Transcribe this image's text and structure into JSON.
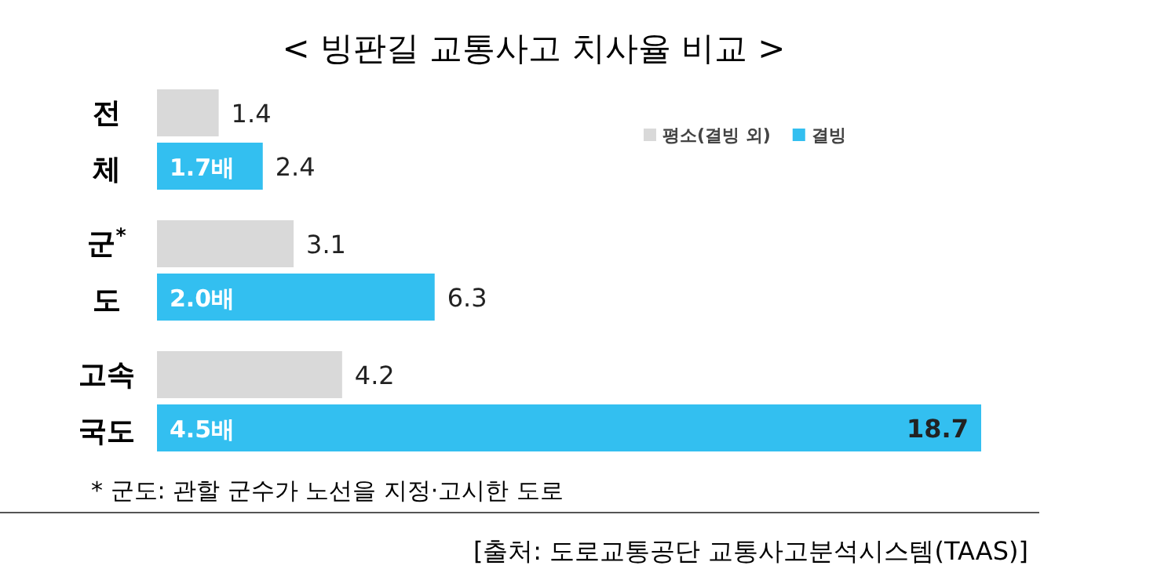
{
  "chart_data": {
    "type": "bar",
    "orientation": "horizontal",
    "title": "< 빙판길 교통사고 치사율 비교 >",
    "categories": [
      "전\n체",
      "군$^{*}$\n도",
      "고속\n국도"
    ],
    "series": [
      {
        "name": "평소(결빙 외)",
        "color": "#d9d9d9",
        "values": [
          1.4,
          3.1,
          4.2
        ]
      },
      {
        "name": "결빙",
        "color": "#33bff0",
        "values": [
          2.4,
          6.3,
          18.7
        ]
      }
    ],
    "data_labels": true,
    "legend": "top right",
    "annotations": [
      {
        "text": "1.7배",
        "y": "전\n체"
      },
      {
        "text": "2.0배",
        "y": "군$^{*}$\n도"
      },
      {
        "text": "4.5배",
        "y": "고속\n국도"
      },
      "* 군도: 관할 군수가 노선을 지정·고시한 도로",
      "[출처: 도로교통공단 교통사고분석시스템(TAAS)]"
    ]
  }
}
